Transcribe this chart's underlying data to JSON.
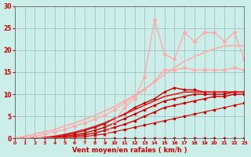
{
  "title": "",
  "xlabel": "Vent moyen/en rafales ( km/h )",
  "ylabel": "",
  "xlim": [
    0,
    23
  ],
  "ylim": [
    0,
    30
  ],
  "xticks": [
    0,
    1,
    2,
    3,
    4,
    5,
    6,
    7,
    8,
    9,
    10,
    11,
    12,
    13,
    14,
    15,
    16,
    17,
    18,
    19,
    20,
    21,
    22,
    23
  ],
  "yticks": [
    0,
    5,
    10,
    15,
    20,
    25,
    30
  ],
  "background_color": "#cceee8",
  "grid_color": "#99bbbb",
  "series": [
    {
      "x": [
        0,
        1,
        2,
        3,
        4,
        5,
        6,
        7,
        8,
        9,
        10,
        11,
        12,
        13,
        14,
        15,
        16,
        17,
        18,
        19,
        20,
        21,
        22,
        23
      ],
      "y": [
        0,
        0,
        0,
        0,
        0,
        0,
        0,
        0,
        0,
        0,
        0,
        0,
        0,
        0,
        0,
        0,
        0,
        0,
        0,
        0,
        0,
        0,
        0,
        0
      ],
      "color": "#cc0000",
      "linewidth": 0.8,
      "marker": "s",
      "markersize": 1.5,
      "alpha": 1.0
    },
    {
      "x": [
        0,
        1,
        2,
        3,
        4,
        5,
        6,
        7,
        8,
        9,
        10,
        11,
        12,
        13,
        14,
        15,
        16,
        17,
        18,
        19,
        20,
        21,
        22,
        23
      ],
      "y": [
        0,
        0,
        0,
        0,
        0,
        0,
        0.2,
        0.4,
        0.7,
        1.0,
        1.5,
        2.0,
        2.5,
        3.0,
        3.5,
        4.0,
        4.5,
        5.0,
        5.5,
        6.0,
        6.5,
        7.0,
        7.5,
        8.0
      ],
      "color": "#cc0000",
      "linewidth": 0.8,
      "marker": "s",
      "markersize": 1.5,
      "alpha": 1.0
    },
    {
      "x": [
        0,
        1,
        2,
        3,
        4,
        5,
        6,
        7,
        8,
        9,
        10,
        11,
        12,
        13,
        14,
        15,
        16,
        17,
        18,
        19,
        20,
        21,
        22,
        23
      ],
      "y": [
        0,
        0,
        0,
        0,
        0,
        0.2,
        0.5,
        0.8,
        1.2,
        1.8,
        2.5,
        3.2,
        4.0,
        5.0,
        6.0,
        7.0,
        7.5,
        8.0,
        8.5,
        9.0,
        9.5,
        9.5,
        10.0,
        10.0
      ],
      "color": "#cc0000",
      "linewidth": 1.0,
      "marker": "s",
      "markersize": 1.5,
      "alpha": 1.0
    },
    {
      "x": [
        0,
        1,
        2,
        3,
        4,
        5,
        6,
        7,
        8,
        9,
        10,
        11,
        12,
        13,
        14,
        15,
        16,
        17,
        18,
        19,
        20,
        21,
        22,
        23
      ],
      "y": [
        0,
        0,
        0,
        0,
        0.2,
        0.5,
        0.8,
        1.2,
        1.8,
        2.5,
        3.5,
        4.5,
        5.5,
        6.5,
        7.5,
        8.5,
        9.0,
        9.5,
        10.0,
        10.0,
        10.0,
        10.0,
        10.5,
        10.5
      ],
      "color": "#cc0000",
      "linewidth": 1.0,
      "marker": "s",
      "markersize": 1.5,
      "alpha": 1.0
    },
    {
      "x": [
        0,
        1,
        2,
        3,
        4,
        5,
        6,
        7,
        8,
        9,
        10,
        11,
        12,
        13,
        14,
        15,
        16,
        17,
        18,
        19,
        20,
        21,
        22,
        23
      ],
      "y": [
        0,
        0,
        0,
        0,
        0.3,
        0.7,
        1.2,
        1.8,
        2.5,
        3.3,
        4.5,
        5.5,
        7.0,
        8.0,
        9.0,
        10.5,
        11.5,
        11.0,
        11.0,
        10.5,
        10.5,
        10.5,
        10.5,
        10.5
      ],
      "color": "#cc0000",
      "linewidth": 1.0,
      "marker": "s",
      "markersize": 1.5,
      "alpha": 1.0
    },
    {
      "x": [
        0,
        1,
        2,
        3,
        4,
        5,
        6,
        7,
        8,
        9,
        10,
        11,
        12,
        13,
        14,
        15,
        16,
        17,
        18,
        19,
        20,
        21,
        22,
        23
      ],
      "y": [
        0,
        0,
        0,
        0.2,
        0.5,
        0.9,
        1.4,
        2.0,
        2.7,
        3.5,
        4.5,
        5.5,
        6.5,
        7.5,
        8.5,
        9.5,
        10.0,
        10.5,
        10.5,
        10.5,
        10.5,
        10.5,
        10.5,
        10.5
      ],
      "color": "#dd2222",
      "linewidth": 1.2,
      "marker": null,
      "markersize": 0,
      "alpha": 1.0
    },
    {
      "x": [
        0,
        1,
        2,
        3,
        4,
        5,
        6,
        7,
        8,
        9,
        10,
        11,
        12,
        13,
        14,
        15,
        16,
        17,
        18,
        19,
        20,
        21,
        22,
        23
      ],
      "y": [
        0,
        0.5,
        1.0,
        1.5,
        2.0,
        2.8,
        3.5,
        4.3,
        5.2,
        6.2,
        7.2,
        8.5,
        9.8,
        11.2,
        12.8,
        14.5,
        16.0,
        17.5,
        18.5,
        19.5,
        20.3,
        21.0,
        21.0,
        21.0
      ],
      "color": "#ffaaaa",
      "linewidth": 1.2,
      "marker": null,
      "markersize": 0,
      "alpha": 1.0
    },
    {
      "x": [
        0,
        1,
        2,
        3,
        4,
        5,
        6,
        7,
        8,
        9,
        10,
        11,
        12,
        13,
        14,
        15,
        16,
        17,
        18,
        19,
        20,
        21,
        22,
        23
      ],
      "y": [
        0,
        0,
        0.5,
        1.0,
        1.5,
        2.0,
        2.8,
        3.5,
        4.3,
        5.2,
        6.5,
        8.0,
        9.5,
        11.0,
        13.0,
        15.5,
        15.5,
        16.0,
        15.5,
        15.5,
        15.5,
        15.5,
        16.0,
        15.5
      ],
      "color": "#ffaaaa",
      "linewidth": 1.0,
      "marker": "D",
      "markersize": 2,
      "alpha": 1.0
    },
    {
      "x": [
        0,
        9,
        10,
        11,
        12,
        13,
        14,
        15,
        16,
        17,
        18,
        19,
        20,
        21,
        22,
        23
      ],
      "y": [
        0,
        0,
        4,
        7,
        9,
        14,
        27,
        19,
        18,
        24,
        22,
        24,
        24,
        22,
        24,
        18
      ],
      "color": "#ffaaaa",
      "linewidth": 1.0,
      "marker": "D",
      "markersize": 2,
      "alpha": 1.0
    }
  ]
}
